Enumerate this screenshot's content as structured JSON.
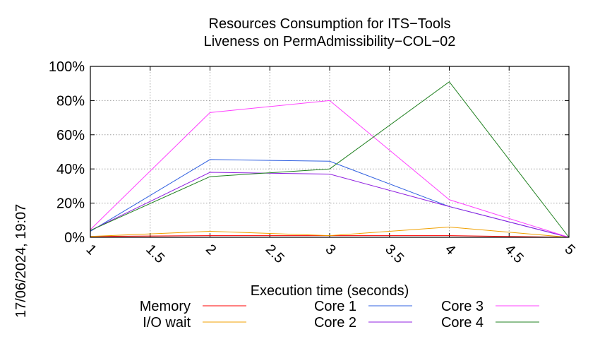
{
  "chart_data": {
    "type": "line",
    "title": "Resources Consumption for ITS−Tools",
    "subtitle": "Liveness on PermAdmissibility−COL−02",
    "xlabel": "Execution time (seconds)",
    "ylabel": "",
    "side_label": "17/06/2024, 19:07",
    "xlim": [
      1,
      5
    ],
    "ylim": [
      0,
      100
    ],
    "x_ticks": [
      "1",
      "1.5",
      "2",
      "2.5",
      "3",
      "3.5",
      "4",
      "4.5",
      "5"
    ],
    "y_ticks": [
      "0%",
      "20%",
      "40%",
      "60%",
      "80%",
      "100%"
    ],
    "grid": true,
    "x": [
      1,
      2,
      3,
      4,
      5
    ],
    "series": [
      {
        "name": "Memory",
        "color": "#ff0000",
        "values": [
          0.5,
          1,
          1,
          1,
          0
        ]
      },
      {
        "name": "I/O wait",
        "color": "#f0a000",
        "values": [
          0.5,
          3.5,
          1,
          6,
          0
        ]
      },
      {
        "name": "Core 1",
        "color": "#3060e0",
        "values": [
          3.5,
          45.5,
          44.5,
          18,
          0
        ]
      },
      {
        "name": "Core 2",
        "color": "#9020e0",
        "values": [
          4,
          38,
          37,
          18,
          0
        ]
      },
      {
        "name": "Core 3",
        "color": "#ff40ff",
        "values": [
          4.5,
          73,
          80,
          22,
          0
        ]
      },
      {
        "name": "Core 4",
        "color": "#208020",
        "values": [
          4,
          35.5,
          40,
          91,
          0
        ]
      }
    ]
  }
}
